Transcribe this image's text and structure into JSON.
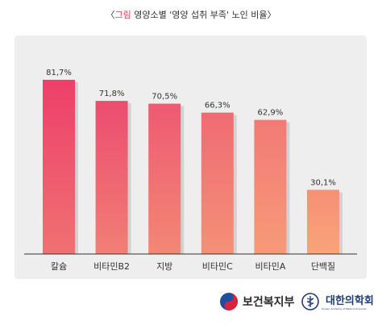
{
  "title": {
    "open_bracket": "〈",
    "accent": "그림",
    "text": " 영양소별 '영양 섭취 부족' 노인 비율",
    "close_bracket": "〉"
  },
  "chart_data": {
    "type": "bar",
    "categories": [
      "칼슘",
      "비타민B2",
      "지방",
      "비타민C",
      "비타민A",
      "단백질"
    ],
    "values": [
      81.7,
      71.8,
      70.5,
      66.3,
      62.9,
      30.1
    ],
    "value_labels": [
      "81,7%",
      "71,8%",
      "70,5%",
      "66,3%",
      "62,9%",
      "30,1%"
    ],
    "ylim": [
      0,
      100
    ],
    "grid": false,
    "legend": "none",
    "colors": {
      "bar_top": [
        "#ee3f6a",
        "#ec4c70",
        "#ee5a72",
        "#ef6b74",
        "#f27a76",
        "#f78f76"
      ],
      "bar_bottom": [
        "#f07172",
        "#f17f74",
        "#f38775",
        "#f59077",
        "#f79a78",
        "#f9a47a"
      ],
      "shadow": "#d2d2d2",
      "baseline": "#333333"
    }
  },
  "footer": {
    "mohw_name": "보건복지부",
    "nams_name": "대한의학회",
    "nams_sub": "Korean Academy of Medical Sciences"
  }
}
